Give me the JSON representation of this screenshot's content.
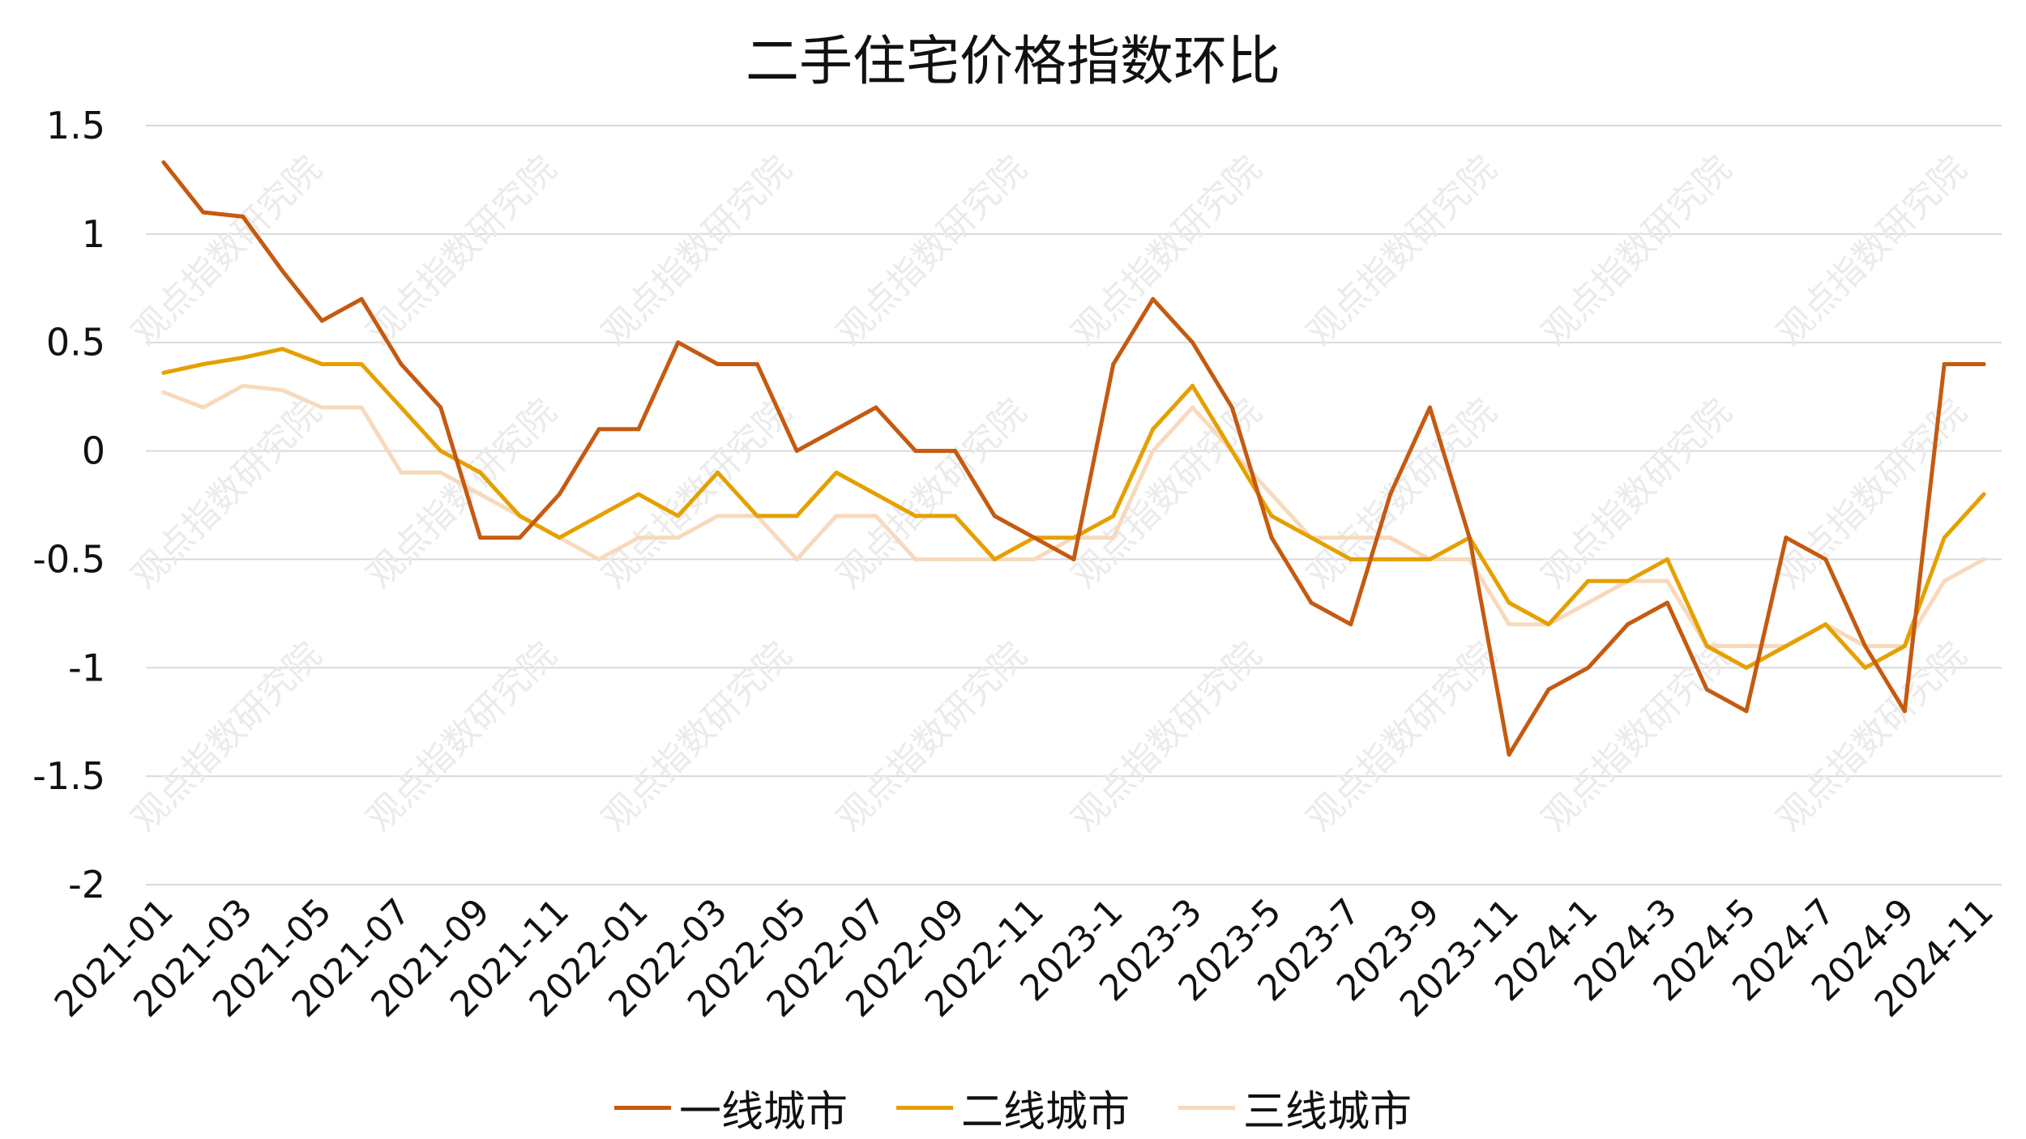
{
  "chart_data": {
    "type": "line",
    "title": "二手住宅价格指数环比",
    "ylim": [
      -2,
      1.5
    ],
    "yticks": [
      "1.5",
      "1",
      "0.5",
      "0",
      "-0.5",
      "-1",
      "-1.5",
      "-2"
    ],
    "ytick_values": [
      1.5,
      1,
      0.5,
      0,
      -0.5,
      -1,
      -1.5,
      -2
    ],
    "grid": true,
    "legend_position": "bottom",
    "watermark": "观点指数研究院",
    "categories": [
      "2021-01",
      "2021-02",
      "2021-03",
      "2021-04",
      "2021-05",
      "2021-06",
      "2021-07",
      "2021-08",
      "2021-09",
      "2021-10",
      "2021-11",
      "2021-12",
      "2022-01",
      "2022-02",
      "2022-03",
      "2022-04",
      "2022-05",
      "2022-06",
      "2022-07",
      "2022-08",
      "2022-09",
      "2022-10",
      "2022-11",
      "2022-12",
      "2023-1",
      "2023-2",
      "2023-3",
      "2023-4",
      "2023-5",
      "2023-6",
      "2023-7",
      "2023-8",
      "2023-9",
      "2023-10",
      "2023-11",
      "2023-12",
      "2024-1",
      "2024-2",
      "2024-3",
      "2024-4",
      "2024-5",
      "2024-6",
      "2024-7",
      "2024-8",
      "2024-9",
      "2024-10",
      "2024-11"
    ],
    "tick_labels": [
      "2021-01",
      "2021-03",
      "2021-05",
      "2021-07",
      "2021-09",
      "2021-11",
      "2022-01",
      "2022-03",
      "2022-05",
      "2022-07",
      "2022-09",
      "2022-11",
      "2023-1",
      "2023-3",
      "2023-5",
      "2023-7",
      "2023-9",
      "2023-11",
      "2024-1",
      "2024-3",
      "2024-5",
      "2024-7",
      "2024-9",
      "2024-11"
    ],
    "series": [
      {
        "name": "一线城市",
        "color": "#C55A11",
        "values": [
          1.33,
          1.1,
          1.08,
          0.83,
          0.6,
          0.7,
          0.4,
          0.2,
          -0.4,
          -0.4,
          -0.2,
          0.1,
          0.1,
          0.5,
          0.4,
          0.4,
          0.0,
          0.1,
          0.2,
          0.0,
          0.0,
          -0.3,
          -0.4,
          -0.5,
          0.4,
          0.7,
          0.5,
          0.2,
          -0.4,
          -0.7,
          -0.8,
          -0.2,
          0.2,
          -0.4,
          -1.4,
          -1.1,
          -1.0,
          -0.8,
          -0.7,
          -1.1,
          -1.2,
          -0.4,
          -0.5,
          -0.9,
          -1.2,
          0.4,
          0.4
        ]
      },
      {
        "name": "二线城市",
        "color": "#E5A000",
        "values": [
          0.36,
          0.4,
          0.43,
          0.47,
          0.4,
          0.4,
          0.2,
          0.0,
          -0.1,
          -0.3,
          -0.4,
          -0.3,
          -0.2,
          -0.3,
          -0.1,
          -0.3,
          -0.3,
          -0.1,
          -0.2,
          -0.3,
          -0.3,
          -0.5,
          -0.4,
          -0.4,
          -0.3,
          0.1,
          0.3,
          0.0,
          -0.3,
          -0.4,
          -0.5,
          -0.5,
          -0.5,
          -0.4,
          -0.7,
          -0.8,
          -0.6,
          -0.6,
          -0.5,
          -0.9,
          -1.0,
          -0.9,
          -0.8,
          -1.0,
          -0.9,
          -0.4,
          -0.2
        ]
      },
      {
        "name": "三线城市",
        "color": "#F8D9BC",
        "values": [
          0.27,
          0.2,
          0.3,
          0.28,
          0.2,
          0.2,
          -0.1,
          -0.1,
          -0.2,
          -0.3,
          -0.4,
          -0.5,
          -0.4,
          -0.4,
          -0.3,
          -0.3,
          -0.5,
          -0.3,
          -0.3,
          -0.5,
          -0.5,
          -0.5,
          -0.5,
          -0.4,
          -0.4,
          0.0,
          0.2,
          0.0,
          -0.2,
          -0.4,
          -0.4,
          -0.4,
          -0.5,
          -0.5,
          -0.8,
          -0.8,
          -0.7,
          -0.6,
          -0.6,
          -0.9,
          -0.9,
          -0.9,
          -0.8,
          -0.9,
          -0.9,
          -0.6,
          -0.5
        ]
      }
    ]
  }
}
